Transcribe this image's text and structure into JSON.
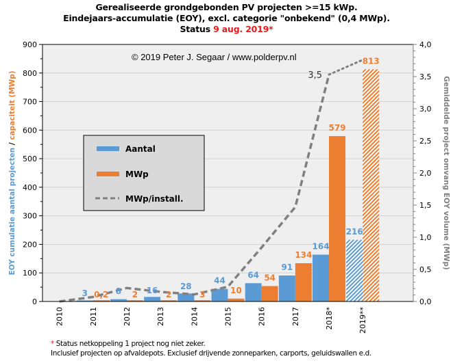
{
  "title": {
    "line1": "Gerealiseerde grondgebonden PV projecten >=15 kWp.",
    "line2": "Eindejaars-accumulatie (EOY), excl. categorie \"onbekend\" (0,4 MWp).",
    "line3_prefix": "Status ",
    "line3_date": "9 aug. 2019*"
  },
  "copyright": "© 2019 Peter J. Segaar / www.polderpv.nl",
  "footer": {
    "note_star": "*",
    "note1": " Status netkoppeling 1 project nog niet zeker.",
    "note2": "Inclusief projecten op afvaldepots. Exclusief drijvende zonneparken, carports, geluidswallen e.d."
  },
  "colors": {
    "aantal": "#5b9bd5",
    "mwp": "#ed7d31",
    "line": "#808080",
    "plot_bg": "#efefef",
    "legend_bg": "#d9d9d9",
    "grid": "#d0d0d0"
  },
  "chart_data": {
    "type": "bar",
    "categories": [
      "2010",
      "2011",
      "2012",
      "2013",
      "2014",
      "2015",
      "2016",
      "2017",
      "2018*",
      "2019**"
    ],
    "series": [
      {
        "name": "Aantal",
        "axis": "left",
        "values": [
          0,
          3,
          8,
          16,
          28,
          44,
          64,
          91,
          164,
          216
        ],
        "labels": [
          "",
          "3",
          "8",
          "16",
          "28",
          "44",
          "64",
          "91",
          "164",
          "216"
        ],
        "hatched_last": true
      },
      {
        "name": "MWp",
        "axis": "left",
        "values": [
          0,
          0.2,
          2,
          2,
          3,
          10,
          54,
          134,
          579,
          813
        ],
        "labels": [
          "",
          "0,2",
          "2",
          "2",
          "3",
          "10",
          "54",
          "134",
          "579",
          "813"
        ],
        "hatched_last": true
      },
      {
        "name": "MWp/install.",
        "axis": "right",
        "type": "line",
        "values": [
          0,
          0.07,
          0.21,
          0.15,
          0.11,
          0.23,
          0.84,
          1.47,
          3.53,
          3.76
        ],
        "annotation": {
          "index": 8,
          "text": "3,5"
        },
        "last_segment_dotted": true
      }
    ],
    "left_axis": {
      "label_part1": "EOY cumulatie aantal projecten",
      "label_sep": " / ",
      "label_part2": "capaciteit (MWp)",
      "range": [
        0,
        900
      ],
      "ticks": [
        "0",
        "100",
        "200",
        "300",
        "400",
        "500",
        "600",
        "700",
        "800",
        "900"
      ]
    },
    "right_axis": {
      "label": "Gemiddelde project omvang EOY volume (MWp)",
      "range": [
        0,
        4
      ],
      "ticks": [
        "0,0",
        "0,5",
        "1,0",
        "1,5",
        "2,0",
        "2,5",
        "3,0",
        "3,5",
        "4,0"
      ]
    },
    "legend": {
      "position": "center-left",
      "items": [
        "Aantal",
        "MWp",
        "MWp/install."
      ]
    },
    "grid": true
  }
}
